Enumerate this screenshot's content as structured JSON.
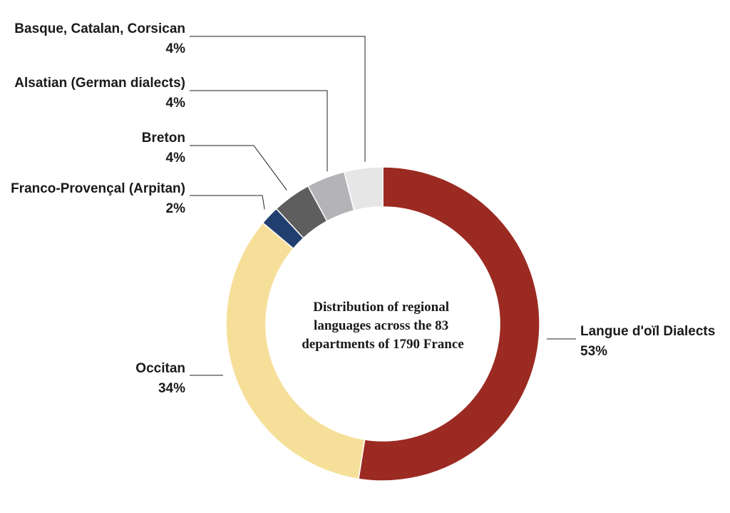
{
  "chart_data": {
    "type": "pie",
    "variant": "donut",
    "title_lines": [
      "Distribution of regional",
      "languages across the 83",
      "departments of 1790 France"
    ],
    "slices": [
      {
        "name": "Langue d'oïl Dialects",
        "value": 53,
        "label": "53%",
        "color": "#9b2a22"
      },
      {
        "name": "Occitan",
        "value": 34,
        "label": "34%",
        "color": "#f6df98"
      },
      {
        "name": "Franco-Provençal (Arpitan)",
        "value": 2,
        "label": "2%",
        "color": "#213f6e"
      },
      {
        "name": "Breton",
        "value": 4,
        "label": "4%",
        "color": "#5e5e5e"
      },
      {
        "name": "Alsatian (German dialects)",
        "value": 4,
        "label": "4%",
        "color": "#b4b4b8"
      },
      {
        "name": "Basque, Catalan, Corsican",
        "value": 4,
        "label": "4%",
        "color": "#e6e6e6"
      }
    ],
    "start": "top",
    "direction": "clockwise"
  }
}
